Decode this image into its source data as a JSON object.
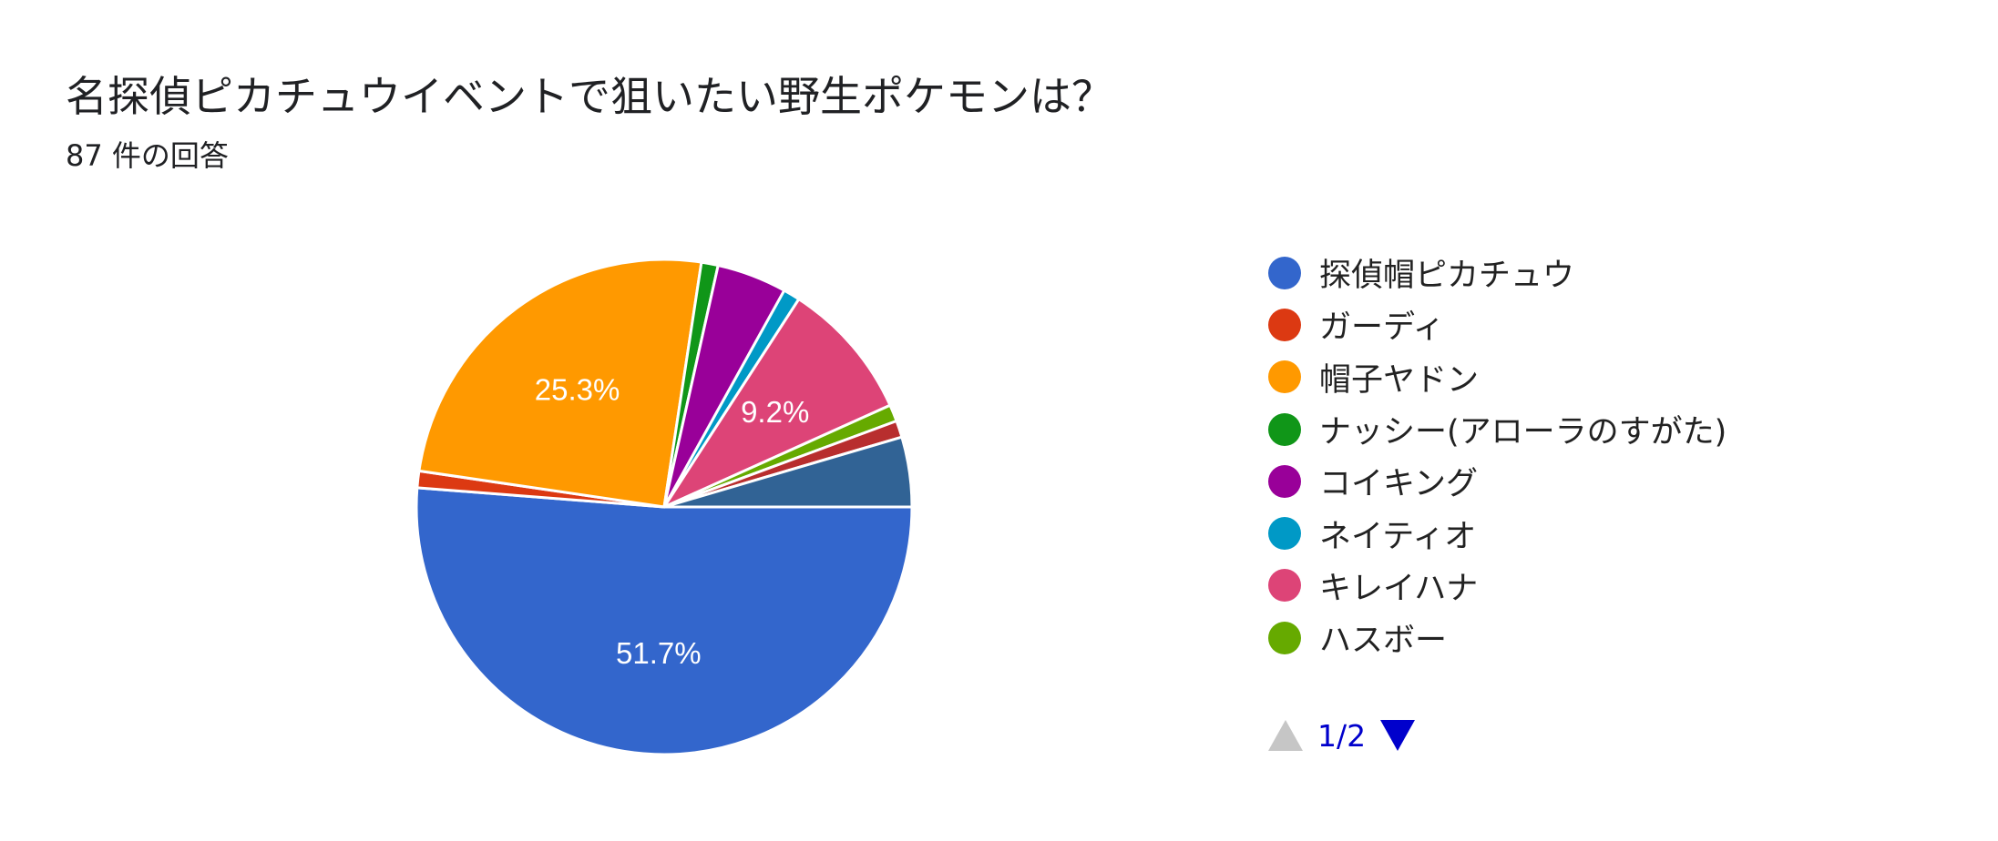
{
  "header": {
    "title": "名探偵ピカチュウイベントで狙いたい野生ポケモンは？",
    "response_count": "87 件の回答"
  },
  "chart_data": {
    "type": "pie",
    "categories": [
      "探偵帽ピカチュウ",
      "ガーディ",
      "帽子ヤドン",
      "ナッシー(アローラのすがた)",
      "コイキング",
      "ネイティオ",
      "キレイハナ",
      "ハスボー",
      "",
      "",
      "",
      ""
    ],
    "values": [
      51.7,
      1.1,
      25.3,
      1.1,
      4.6,
      1.1,
      9.2,
      1.1,
      1.1,
      4.6,
      0,
      0
    ],
    "colors": [
      "#3366cc",
      "#dc3912",
      "#ff9900",
      "#109618",
      "#990099",
      "#0099c6",
      "#dd4477",
      "#66aa00",
      "#b82e2e",
      "#316395",
      "#994499",
      "#aaaa11"
    ],
    "data_labels": [
      "51.7%",
      "",
      "25.3%",
      "",
      "",
      "",
      "9.2%",
      "",
      "",
      "",
      "",
      ""
    ],
    "legend_position": "right",
    "legend_count": 8
  },
  "pagination": {
    "text": "1/2",
    "prev_icon": "triangle-up-icon",
    "next_icon": "triangle-down-icon",
    "prev_color": "#c6c6c6",
    "next_color": "#0000cc"
  }
}
